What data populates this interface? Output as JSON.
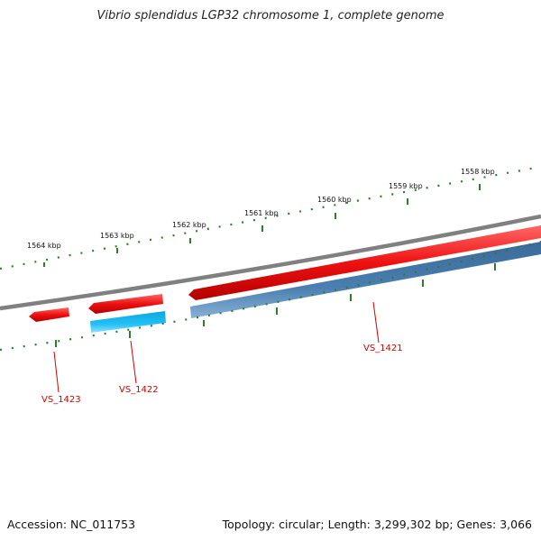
{
  "title": "Vibrio splendidus LGP32 chromosome 1, complete genome",
  "scale": {
    "labels": [
      "1564 kbp",
      "1563 kbp",
      "1562 kbp",
      "1561 kbp",
      "1560 kbp",
      "1559 kbp",
      "1558 kbp"
    ]
  },
  "genes": [
    {
      "name": "VS_1423"
    },
    {
      "name": "VS_1422"
    },
    {
      "name": "VS_1421"
    }
  ],
  "colors": {
    "backbone": "#808080",
    "forward_gene": "#ee1111",
    "reverse_gene": "#4477aa",
    "reverse_gene_highlight": "#22bbee",
    "tick": "#2e7d2e",
    "gene_label": "#d40000"
  },
  "footer": {
    "accession": "Accession: NC_011753",
    "summary": "Topology: circular; Length: 3,299,302 bp; Genes: 3,066"
  }
}
